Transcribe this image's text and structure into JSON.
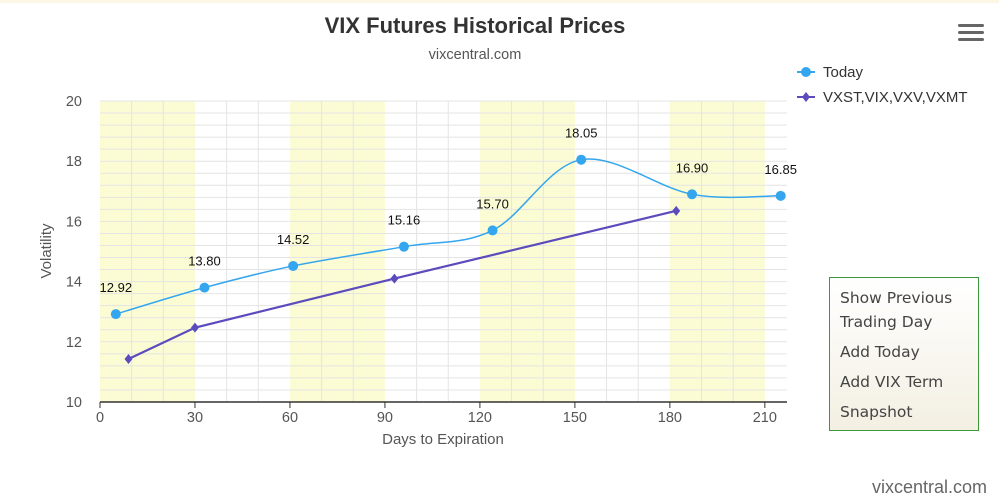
{
  "chart_data": {
    "type": "line",
    "title": "VIX Futures Historical Prices",
    "subtitle": "vixcentral.com",
    "xlabel": "Days to Expiration",
    "ylabel": "Volatility",
    "xlim": [
      0,
      217
    ],
    "ylim": [
      10,
      20
    ],
    "xticks": [
      0,
      30,
      60,
      90,
      120,
      150,
      180,
      210
    ],
    "yticks": [
      10,
      12,
      14,
      16,
      18,
      20
    ],
    "grid": true,
    "legend_position": "top-right",
    "series": [
      {
        "name": "Today",
        "color": "#34a6ef",
        "marker": "circle",
        "smooth": true,
        "points": [
          {
            "x": 5,
            "y": 12.92,
            "label": "12.92"
          },
          {
            "x": 33,
            "y": 13.8,
            "label": "13.80"
          },
          {
            "x": 61,
            "y": 14.52,
            "label": "14.52"
          },
          {
            "x": 96,
            "y": 15.16,
            "label": "15.16"
          },
          {
            "x": 124,
            "y": 15.7,
            "label": "15.70"
          },
          {
            "x": 152,
            "y": 18.05,
            "label": "18.05"
          },
          {
            "x": 187,
            "y": 16.9,
            "label": "16.90"
          },
          {
            "x": 215,
            "y": 16.85,
            "label": "16.85"
          }
        ]
      },
      {
        "name": "VXST,VIX,VXV,VXMT",
        "color": "#5b4bbd",
        "marker": "diamond",
        "smooth": false,
        "points": [
          {
            "x": 9,
            "y": 11.43
          },
          {
            "x": 30,
            "y": 12.47
          },
          {
            "x": 93,
            "y": 14.1
          },
          {
            "x": 182,
            "y": 16.35
          }
        ]
      }
    ]
  },
  "menu": {
    "items": [
      {
        "label": "Show Previous",
        "label2": "Trading Day"
      },
      {
        "label": "Add Today"
      },
      {
        "label": "Add VIX Term"
      },
      {
        "label": "Snapshot"
      }
    ]
  },
  "footer": {
    "brand": "vixcentral.com"
  },
  "colors": {
    "band": "#fcfcd4",
    "grid": "#e4e4e4",
    "axis": "#333333"
  }
}
